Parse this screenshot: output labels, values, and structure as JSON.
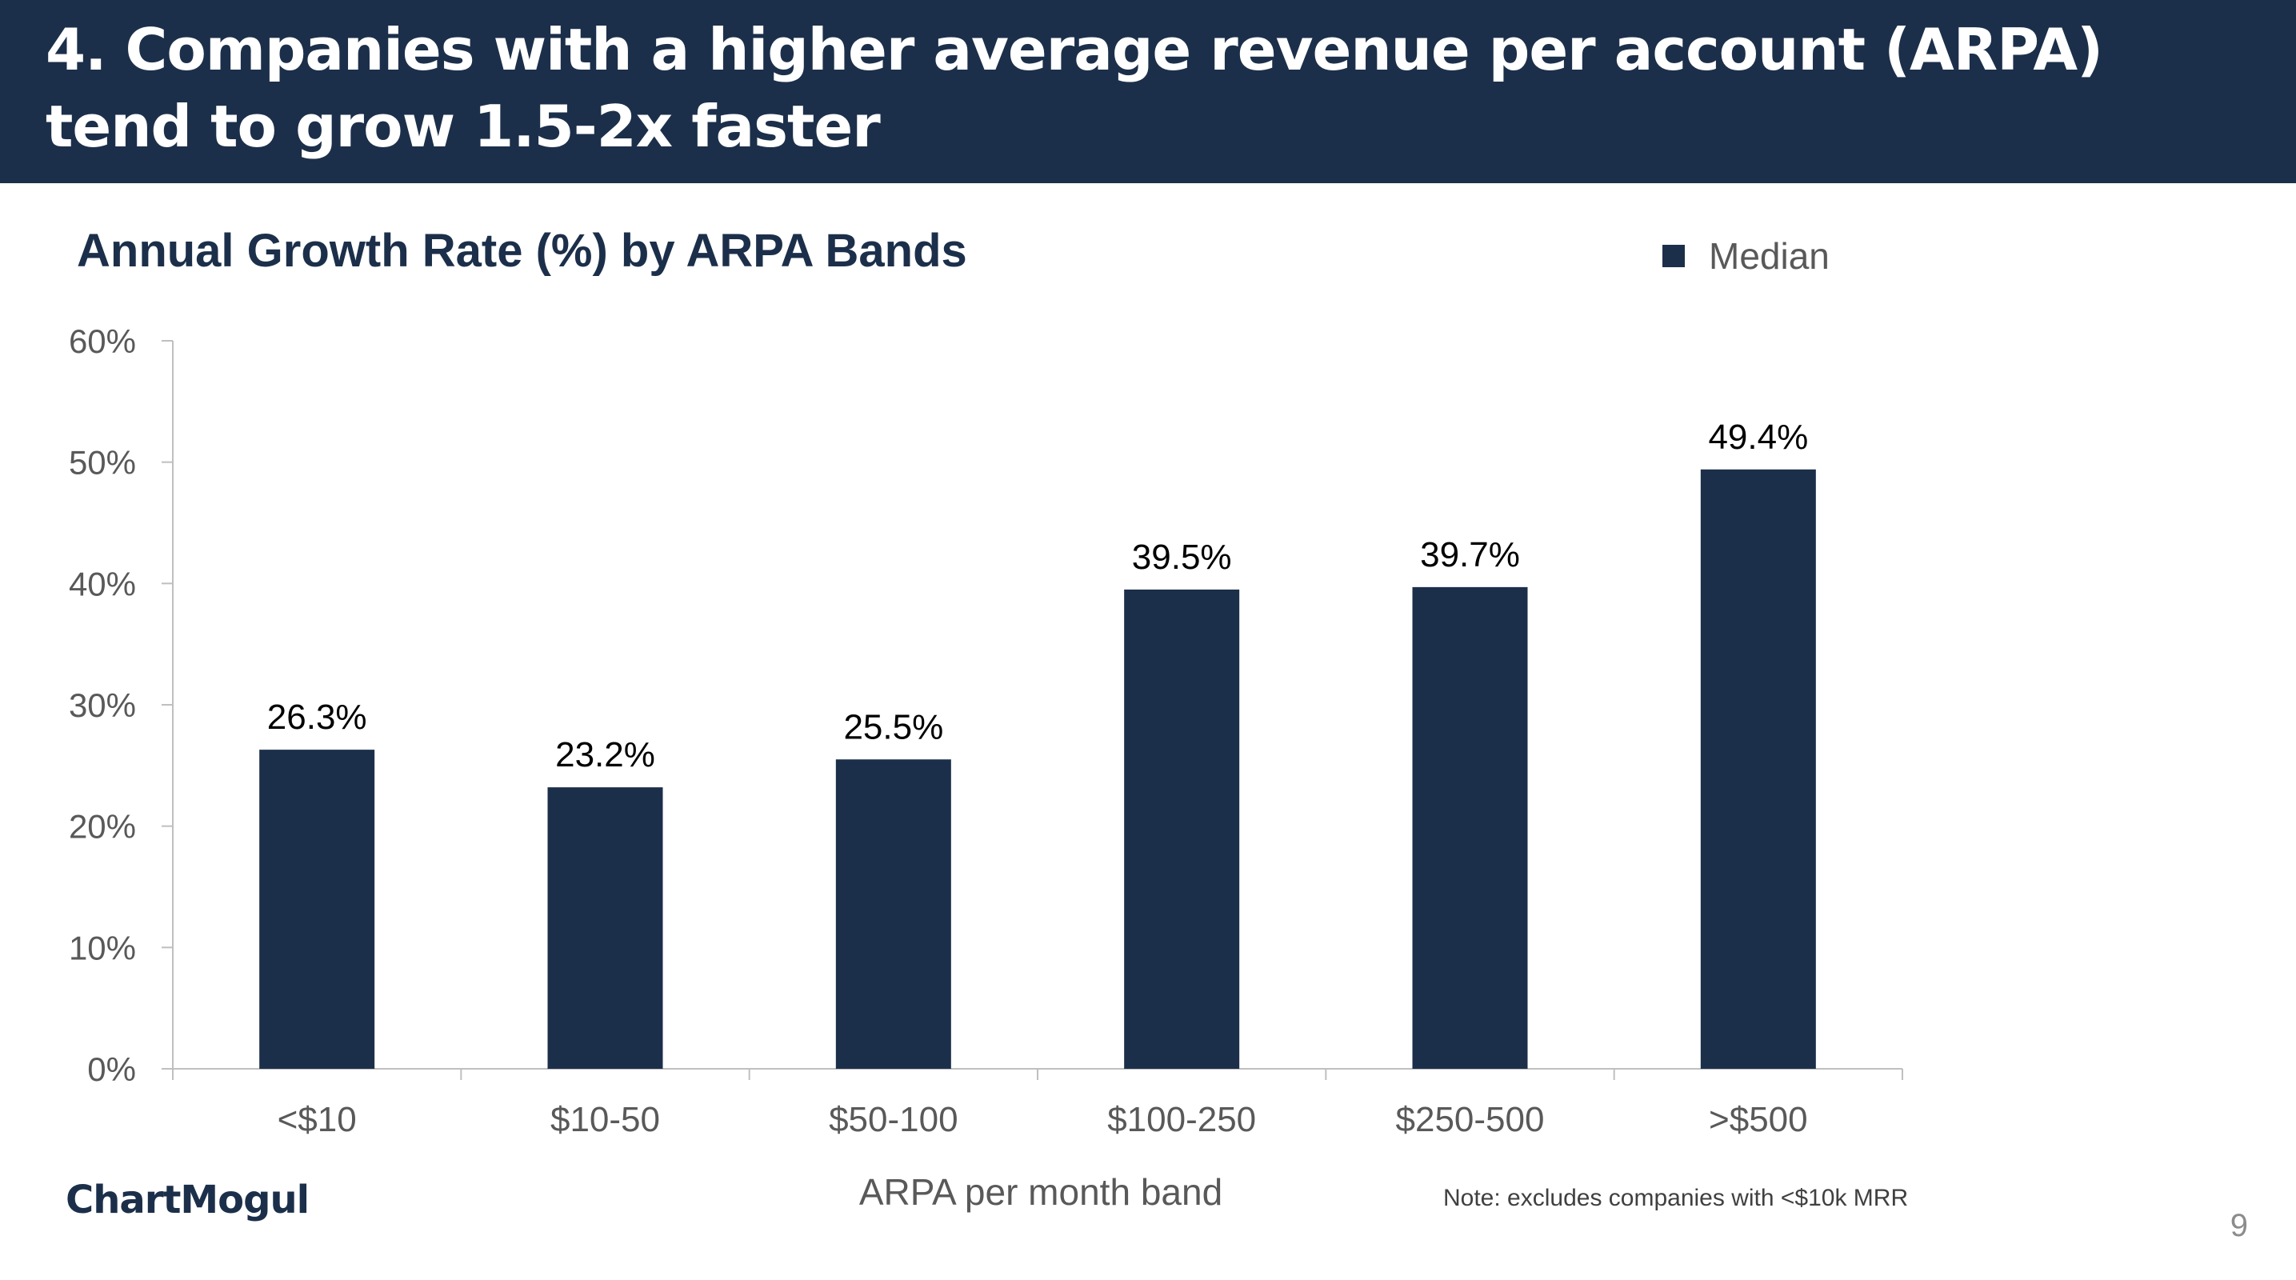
{
  "slide": {
    "title": "4. Companies with a higher average revenue per account (ARPA) tend to grow 1.5-2x faster",
    "brand": "ChartMogul",
    "note": "Note: excludes companies with <$10k MRR",
    "page_number": "9"
  },
  "colors": {
    "header_bg": "#1c2f4a",
    "bar": "#1c2f4a",
    "axis": "#bfbfbf",
    "tick_text": "#595959",
    "label_text": "#000000"
  },
  "chart_data": {
    "type": "bar",
    "title": "Annual Growth Rate (%) by ARPA Bands",
    "xlabel": "ARPA per month band",
    "ylabel": "",
    "categories": [
      "<$10",
      "$10-50",
      "$50-100",
      "$100-250",
      "$250-500",
      ">$500"
    ],
    "series": [
      {
        "name": "Median",
        "values": [
          26.3,
          23.2,
          25.5,
          39.5,
          39.7,
          49.4
        ],
        "labels": [
          "26.3%",
          "23.2%",
          "25.5%",
          "39.5%",
          "39.7%",
          "49.4%"
        ]
      }
    ],
    "ylim": [
      0,
      60
    ],
    "yticks": [
      0,
      10,
      20,
      30,
      40,
      50,
      60
    ],
    "ytick_labels": [
      "0%",
      "10%",
      "20%",
      "30%",
      "40%",
      "50%",
      "60%"
    ],
    "legend": {
      "entries": [
        "Median"
      ],
      "position": "top-right"
    },
    "grid": false
  }
}
